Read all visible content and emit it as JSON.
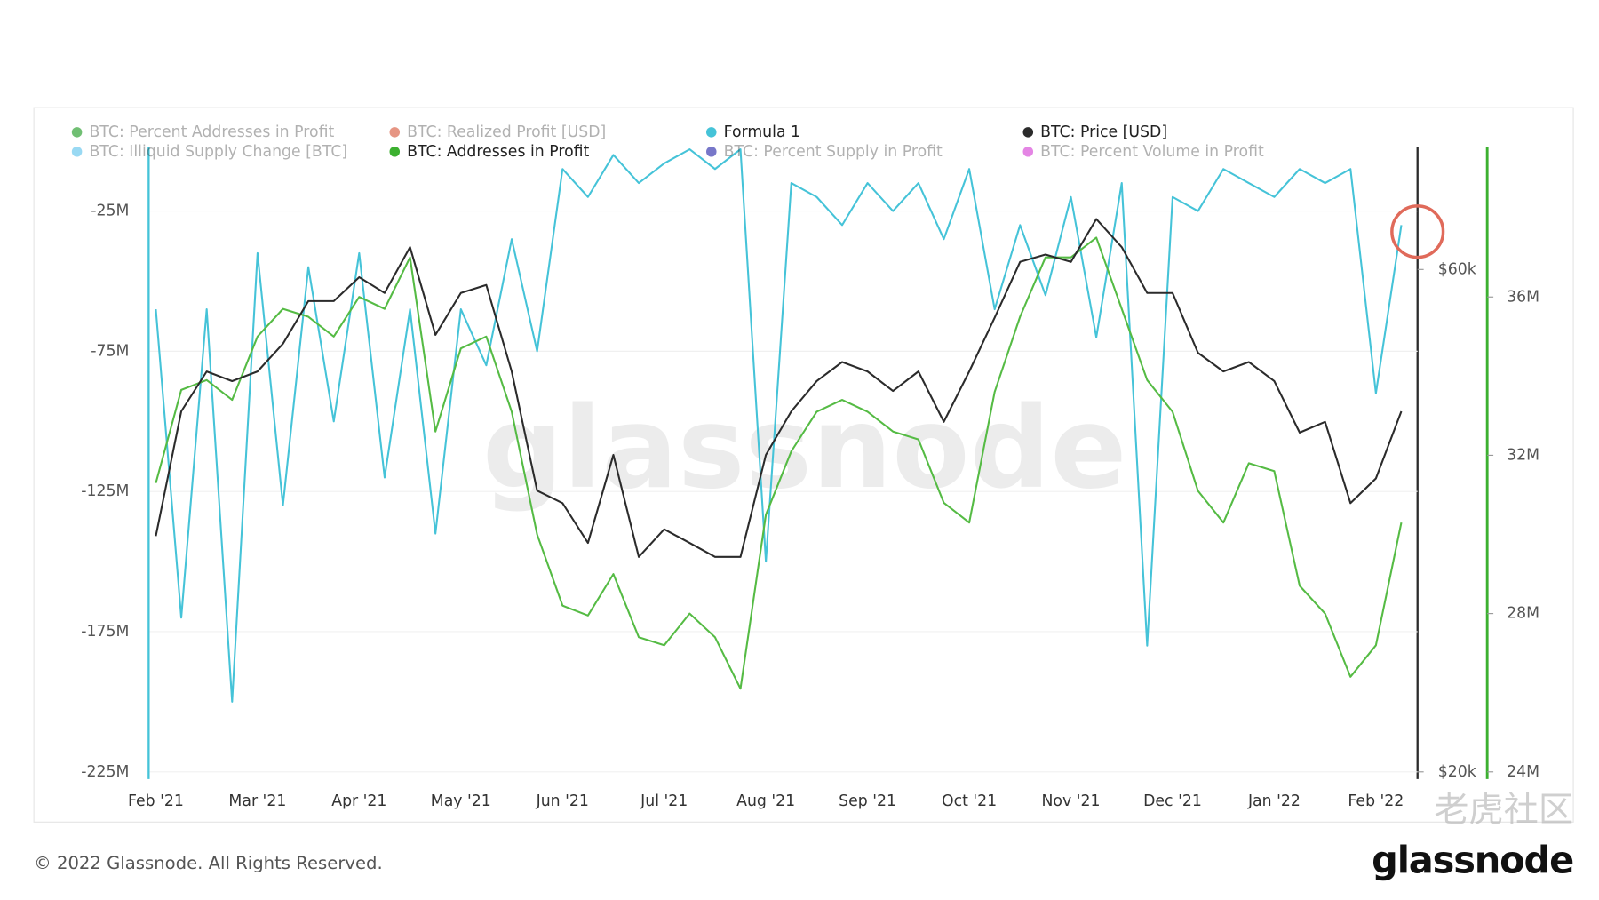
{
  "chart_data": {
    "type": "line",
    "categories": [
      "Feb '21",
      null,
      null,
      null,
      "Mar '21",
      null,
      null,
      null,
      "Apr '21",
      null,
      null,
      null,
      "May '21",
      null,
      null,
      null,
      "Jun '21",
      null,
      null,
      null,
      "Jul '21",
      null,
      null,
      null,
      "Aug '21",
      null,
      null,
      null,
      "Sep '21",
      null,
      null,
      null,
      "Oct '21",
      null,
      null,
      null,
      "Nov '21",
      null,
      null,
      null,
      "Dec '21",
      null,
      null,
      null,
      "Jan '22",
      null,
      null,
      null,
      "Feb '22",
      null
    ],
    "series": [
      {
        "name": "Formula 1",
        "color": "#45c3d8",
        "axis": "y",
        "values": [
          -60000000,
          -170000000,
          -60000000,
          -200000000,
          -40000000,
          -130000000,
          -45000000,
          -100000000,
          -40000000,
          -120000000,
          -60000000,
          -140000000,
          -60000000,
          -80000000,
          -35000000,
          -75000000,
          -10000000,
          -20000000,
          -5000000,
          -15000000,
          -8000000,
          -3000000,
          -10000000,
          -3000000,
          -150000000,
          -15000000,
          -20000000,
          -30000000,
          -15000000,
          -25000000,
          -15000000,
          -35000000,
          -10000000,
          -60000000,
          -30000000,
          -55000000,
          -20000000,
          -70000000,
          -15000000,
          -180000000,
          -20000000,
          -25000000,
          -10000000,
          -15000000,
          -20000000,
          -10000000,
          -15000000,
          -10000000,
          -90000000,
          -30000000
        ]
      },
      {
        "name": "BTC: Addresses in Profit",
        "color": "#55bb44",
        "axis": "y3",
        "values": [
          31300000,
          33650000,
          33900000,
          33400000,
          35000000,
          35700000,
          35500000,
          35000000,
          36000000,
          35700000,
          37000000,
          32600000,
          34700000,
          35000000,
          33100000,
          30000000,
          28200000,
          27950000,
          29000000,
          27400000,
          27200000,
          28000000,
          27400000,
          26100000,
          30500000,
          32100000,
          33100000,
          33400000,
          33100000,
          32600000,
          32400000,
          30800000,
          30300000,
          33600000,
          35500000,
          37000000,
          37000000,
          37500000,
          35700000,
          33900000,
          33100000,
          31100000,
          30300000,
          31800000,
          31600000,
          28700000,
          28000000,
          26400000,
          27200000,
          30300000
        ]
      },
      {
        "name": "BTC: Price [USD]",
        "color": "#2b2b2b",
        "axis": "y2",
        "values": [
          33500,
          44000,
          48000,
          47000,
          48000,
          51000,
          56000,
          56000,
          59000,
          57000,
          63000,
          52000,
          57000,
          58000,
          48000,
          37000,
          36000,
          33000,
          40000,
          32000,
          34000,
          33000,
          32000,
          32000,
          40000,
          44000,
          47000,
          49000,
          48000,
          46000,
          48000,
          43000,
          48000,
          54000,
          61000,
          62000,
          61000,
          67000,
          63000,
          57000,
          57000,
          50000,
          48000,
          49000,
          47000,
          42000,
          43000,
          36000,
          38000,
          44000
        ]
      }
    ],
    "legend": [
      {
        "name": "BTC: Percent Addresses in Profit",
        "color": "#4caf50",
        "active": false
      },
      {
        "name": "BTC: Realized Profit [USD]",
        "color": "#e07a64",
        "active": false
      },
      {
        "name": "Formula 1",
        "color": "#45c3d8",
        "active": true
      },
      {
        "name": "BTC: Price [USD]",
        "color": "#2b2b2b",
        "active": true
      },
      {
        "name": "BTC: Illiquid Supply Change [BTC]",
        "color": "#7fd0f0",
        "active": false
      },
      {
        "name": "BTC: Addresses in Profit",
        "color": "#3cb030",
        "active": true
      },
      {
        "name": "BTC: Percent Supply in Profit",
        "color": "#5555bb",
        "active": false
      },
      {
        "name": "BTC: Percent Volume in Profit",
        "color": "#dd66dd",
        "active": false
      }
    ],
    "ylim": [
      -225000000,
      -2000000
    ],
    "yticks": [
      {
        "value": -25000000,
        "label": "-25M"
      },
      {
        "value": -75000000,
        "label": "-75M"
      },
      {
        "value": -125000000,
        "label": "-125M"
      },
      {
        "value": -175000000,
        "label": "-175M"
      },
      {
        "value": -225000000,
        "label": "-225M"
      }
    ],
    "y2lim": [
      20000,
      78500
    ],
    "y2log": true,
    "y2ticks": [
      {
        "value": 20000,
        "label": "$20k"
      },
      {
        "value": 60000,
        "label": "$60k"
      }
    ],
    "y3lim": [
      24000000,
      39800000
    ],
    "y3ticks": [
      {
        "value": 24000000,
        "label": "24M"
      },
      {
        "value": 28000000,
        "label": "28M"
      },
      {
        "value": 32000000,
        "label": "32M"
      },
      {
        "value": 36000000,
        "label": "36M"
      }
    ],
    "grid": true,
    "watermark": "glassnode",
    "footer": "© 2022 Glassnode. All Rights Reserved.",
    "logo": "glassnode",
    "community_mark": "老虎社区"
  }
}
